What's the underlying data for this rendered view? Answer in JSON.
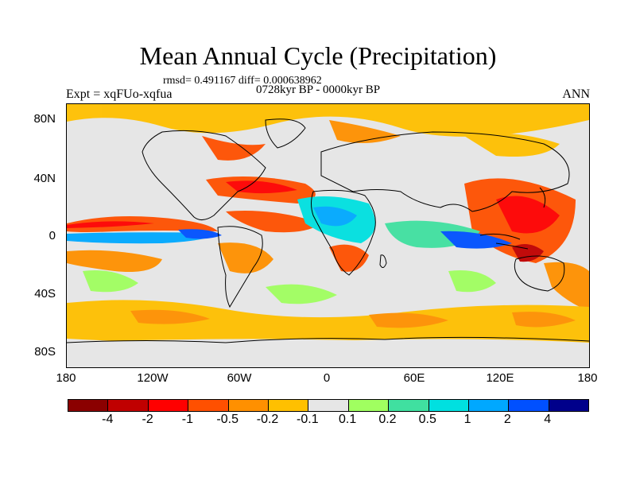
{
  "title": "Mean Annual Cycle (Precipitation)",
  "stats": "rmsd= 0.491167 diff= 0.000638962",
  "period": "0728kyr BP - 0000kyr BP",
  "experiment": "Expt = xqFUo-xqfua",
  "season": "ANN",
  "lat_labels": [
    "80N",
    "40N",
    "0",
    "40S",
    "80S"
  ],
  "lon_labels": [
    "180",
    "120W",
    "60W",
    "0",
    "60E",
    "120E",
    "180"
  ],
  "colorbar": {
    "colors": [
      "#8b0000",
      "#c00000",
      "#ff0000",
      "#ff5000",
      "#ff9000",
      "#ffc000",
      "#e6e6e6",
      "#a0ff60",
      "#40e0a0",
      "#00e0e0",
      "#00a8ff",
      "#0050ff",
      "#00008b"
    ],
    "labels": [
      "-4",
      "-2",
      "-1",
      "-0.5",
      "-0.2",
      "-0.1",
      "0.1",
      "0.2",
      "0.5",
      "1",
      "2",
      "4"
    ]
  }
}
